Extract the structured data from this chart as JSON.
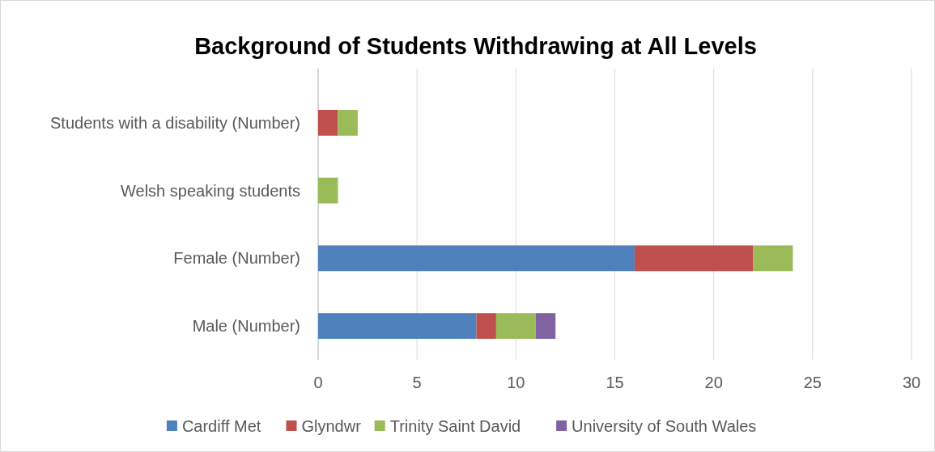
{
  "chart_data": {
    "type": "bar",
    "orientation": "horizontal",
    "stacked": true,
    "title": "Background of Students Withdrawing at All Levels",
    "categories": [
      "Students with a disability (Number)",
      "Welsh speaking students",
      "Female (Number)",
      "Male (Number)"
    ],
    "series": [
      {
        "name": "Cardiff Met",
        "color": "#4f81bd",
        "values": [
          null,
          null,
          16,
          8
        ]
      },
      {
        "name": "Glyndwr",
        "color": "#c0504d",
        "values": [
          1,
          null,
          6,
          1
        ]
      },
      {
        "name": "Trinity Saint David",
        "color": "#9bbb59",
        "values": [
          1,
          1,
          2,
          2
        ]
      },
      {
        "name": "University of South Wales",
        "color": "#8064a2",
        "values": [
          null,
          null,
          null,
          1
        ]
      }
    ],
    "xlim": [
      0,
      30
    ],
    "xticks": [
      0,
      5,
      10,
      15,
      20,
      25,
      30
    ],
    "grid": "x",
    "legend": "bottom"
  }
}
